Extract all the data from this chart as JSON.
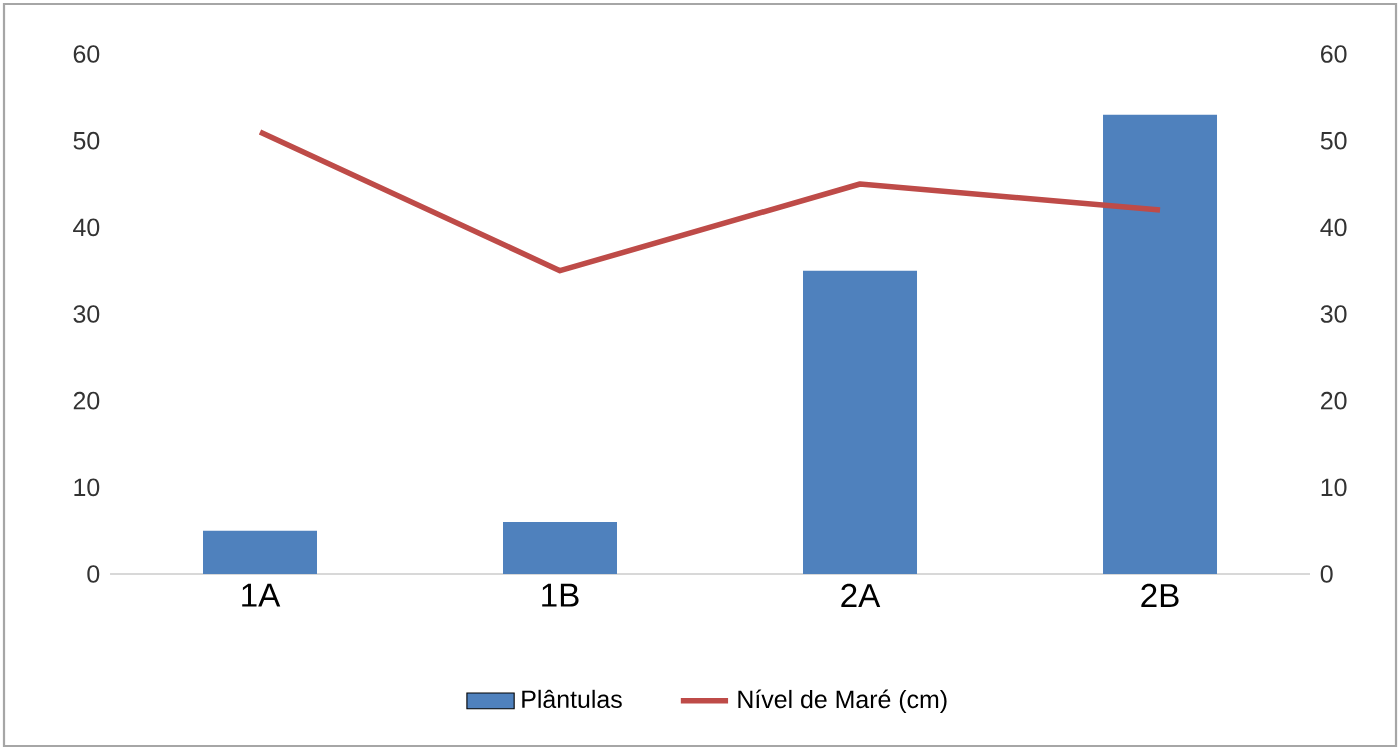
{
  "chart_data": {
    "type": "bar",
    "categories": [
      "1A",
      "1B",
      "2A",
      "2B"
    ],
    "series": [
      {
        "name": "Plântulas",
        "color": "#4f81bd",
        "values": [
          5,
          6,
          35,
          53
        ]
      },
      {
        "name": "Nível de Maré (cm)",
        "color": "#be4b48",
        "type": "line",
        "axis": "y2",
        "values": [
          51,
          35,
          45,
          42
        ]
      }
    ],
    "ylim": [
      0,
      60
    ],
    "yticks": [
      0,
      10,
      20,
      30,
      40,
      50,
      60
    ],
    "y2lim": [
      0,
      60
    ],
    "y2ticks": [
      0,
      10,
      20,
      30,
      40,
      50,
      60
    ],
    "legend": "bottom",
    "grid": false
  }
}
